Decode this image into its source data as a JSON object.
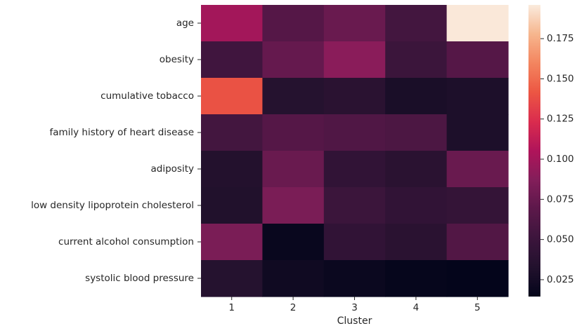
{
  "chart_data": {
    "type": "heatmap",
    "xlabel": "Cluster",
    "ylabel": "",
    "title": "",
    "columns": [
      "1",
      "2",
      "3",
      "4",
      "5"
    ],
    "rows": [
      "age",
      "obesity",
      "cumulative tobacco",
      "family history of heart disease",
      "adiposity",
      "low density lipoprotein cholesterol",
      "current alcohol consumption",
      "systolic blood pressure"
    ],
    "values": [
      [
        0.1,
        0.065,
        0.075,
        0.055,
        0.195
      ],
      [
        0.053,
        0.073,
        0.09,
        0.05,
        0.065
      ],
      [
        0.14,
        0.035,
        0.038,
        0.028,
        0.03
      ],
      [
        0.055,
        0.065,
        0.062,
        0.06,
        0.03
      ],
      [
        0.033,
        0.075,
        0.043,
        0.038,
        0.075
      ],
      [
        0.032,
        0.083,
        0.05,
        0.043,
        0.045
      ],
      [
        0.083,
        0.018,
        0.043,
        0.038,
        0.063
      ],
      [
        0.035,
        0.022,
        0.019,
        0.016,
        0.015
      ]
    ],
    "colorbar": {
      "min": 0.0145,
      "max": 0.196,
      "ticks": [
        "0.025",
        "0.050",
        "0.075",
        "0.100",
        "0.125",
        "0.150",
        "0.175"
      ],
      "colormap": "rocket"
    }
  }
}
